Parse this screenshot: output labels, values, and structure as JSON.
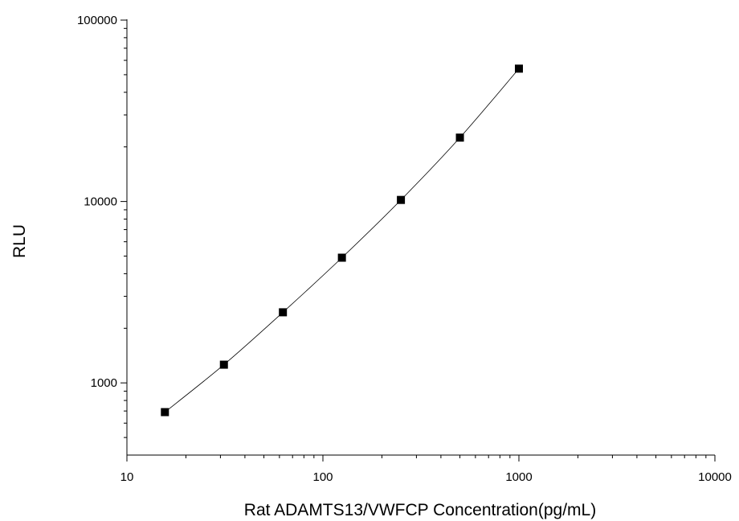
{
  "chart_data": {
    "type": "scatter",
    "title": "",
    "xlabel": "Rat ADAMTS13/VWFCP Concentration(pg/mL)",
    "ylabel": "RLU",
    "x_scale": "log",
    "y_scale": "log",
    "xlim": [
      10,
      10000
    ],
    "ylim": [
      400,
      100000
    ],
    "x_ticks": [
      10,
      100,
      1000,
      10000
    ],
    "x_tick_labels": [
      "10",
      "100",
      "1000",
      "10000"
    ],
    "y_ticks": [
      1000,
      10000,
      100000
    ],
    "y_tick_labels": [
      "1000",
      "10000",
      "100000"
    ],
    "grid": false,
    "legend": "none",
    "series": [
      {
        "x": [
          15.625,
          31.25,
          62.5,
          125,
          250,
          500,
          1000
        ],
        "y": [
          690,
          1260,
          2450,
          4900,
          10200,
          22500,
          54000
        ],
        "marker": "square",
        "line": "fitted-curve",
        "color": "#000000"
      }
    ]
  }
}
